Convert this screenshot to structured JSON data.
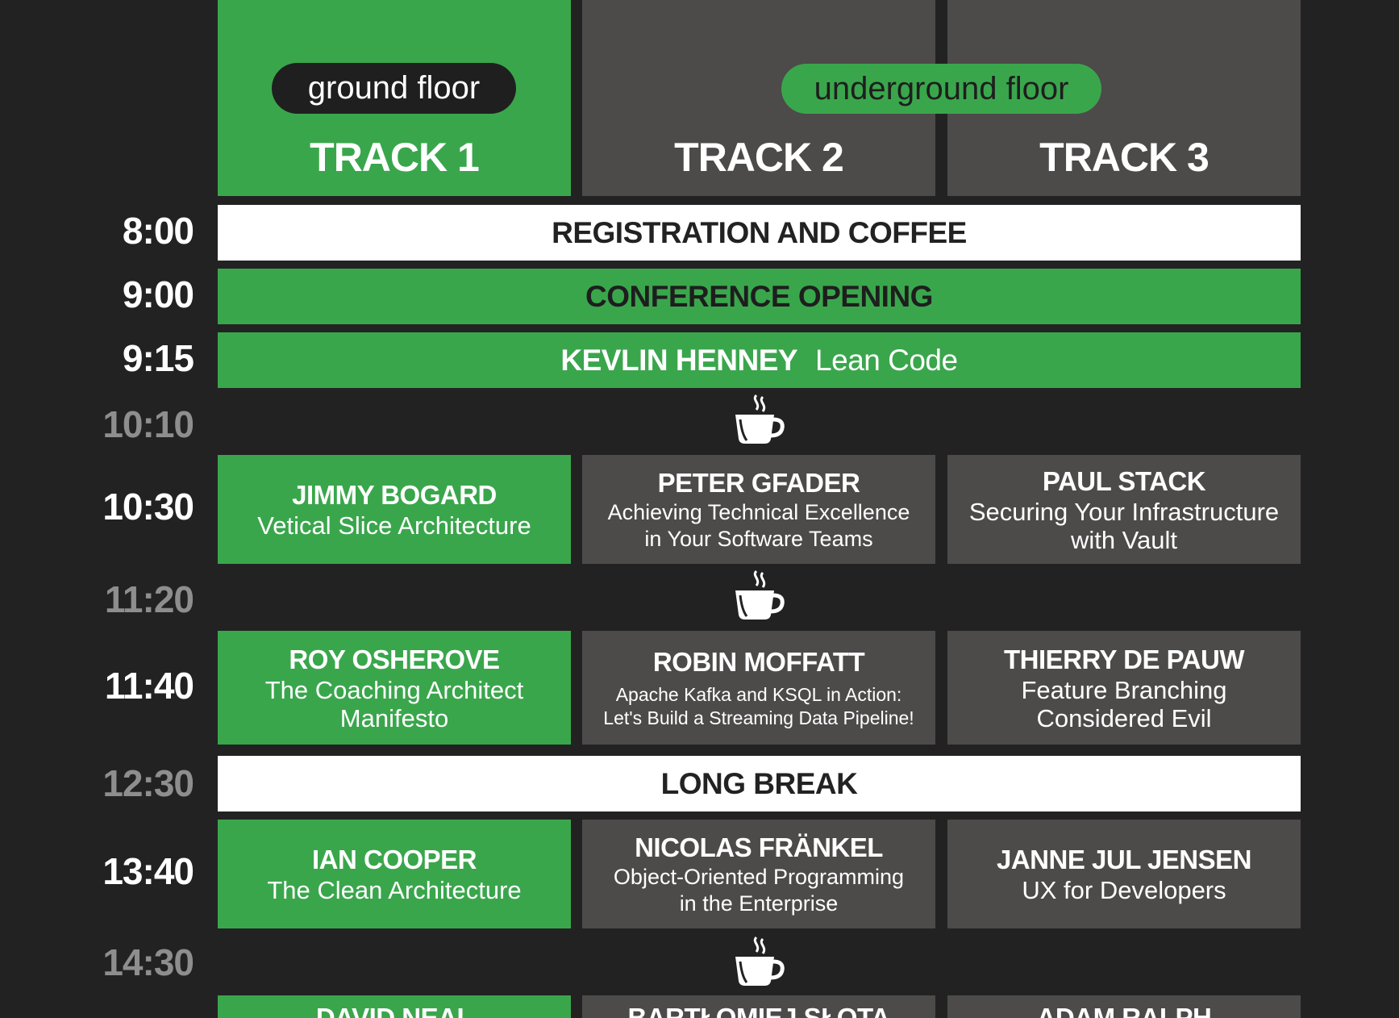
{
  "tracks": [
    {
      "title": "TRACK 1"
    },
    {
      "title": "TRACK 2"
    },
    {
      "title": "TRACK 3"
    }
  ],
  "floors": {
    "ground": "ground floor",
    "underground": "underground floor"
  },
  "times": {
    "t0800": "8:00",
    "t0900": "9:00",
    "t0915": "9:15",
    "t1010": "10:10",
    "t1030": "10:30",
    "t1120": "11:20",
    "t1140": "11:40",
    "t1230": "12:30",
    "t1340": "13:40",
    "t1430": "14:30"
  },
  "bands": {
    "registration": "REGISTRATION AND COFFEE",
    "opening": "CONFERENCE OPENING",
    "keynote_speaker": "KEVLIN HENNEY",
    "keynote_talk": "Lean Code",
    "long_break": "LONG BREAK"
  },
  "sessions": {
    "s1030": [
      {
        "speaker": "JIMMY BOGARD",
        "talk": "Vetical Slice Architecture"
      },
      {
        "speaker": "PETER GFADER",
        "talk_line1": "Achieving Technical Excellence",
        "talk_line2": "in Your Software Teams"
      },
      {
        "speaker": "PAUL STACK",
        "talk_line1": "Securing Your Infrastructure",
        "talk_line2": "with Vault"
      }
    ],
    "s1140": [
      {
        "speaker": "ROY OSHEROVE",
        "talk_line1": "The Coaching Architect",
        "talk_line2": "Manifesto"
      },
      {
        "speaker": "ROBIN MOFFATT",
        "talk_line1": "Apache Kafka and KSQL in Action:",
        "talk_line2": "Let's Build a Streaming Data Pipeline!"
      },
      {
        "speaker": "THIERRY DE PAUW",
        "talk_line1": "Feature Branching",
        "talk_line2": "Considered Evil"
      }
    ],
    "s1340": [
      {
        "speaker": "IAN COOPER",
        "talk": "The Clean Architecture"
      },
      {
        "speaker": "NICOLAS FRÄNKEL",
        "talk_line1": "Object-Oriented Programming",
        "talk_line2": "in the Enterprise"
      },
      {
        "speaker": "JANNE JUL JENSEN",
        "talk": "UX for Developers"
      }
    ],
    "s1450": [
      {
        "speaker": "DAVID NEAL"
      },
      {
        "speaker": "BARTŁOMIEJ SŁOTA"
      },
      {
        "speaker": "ADAM RALPH"
      }
    ]
  },
  "colors": {
    "green": "#3aa64c",
    "gray": "#4d4a4a",
    "background": "#222222",
    "break_time": "#8e8e8e"
  },
  "icons": {
    "coffee": "coffee-cup-icon"
  }
}
